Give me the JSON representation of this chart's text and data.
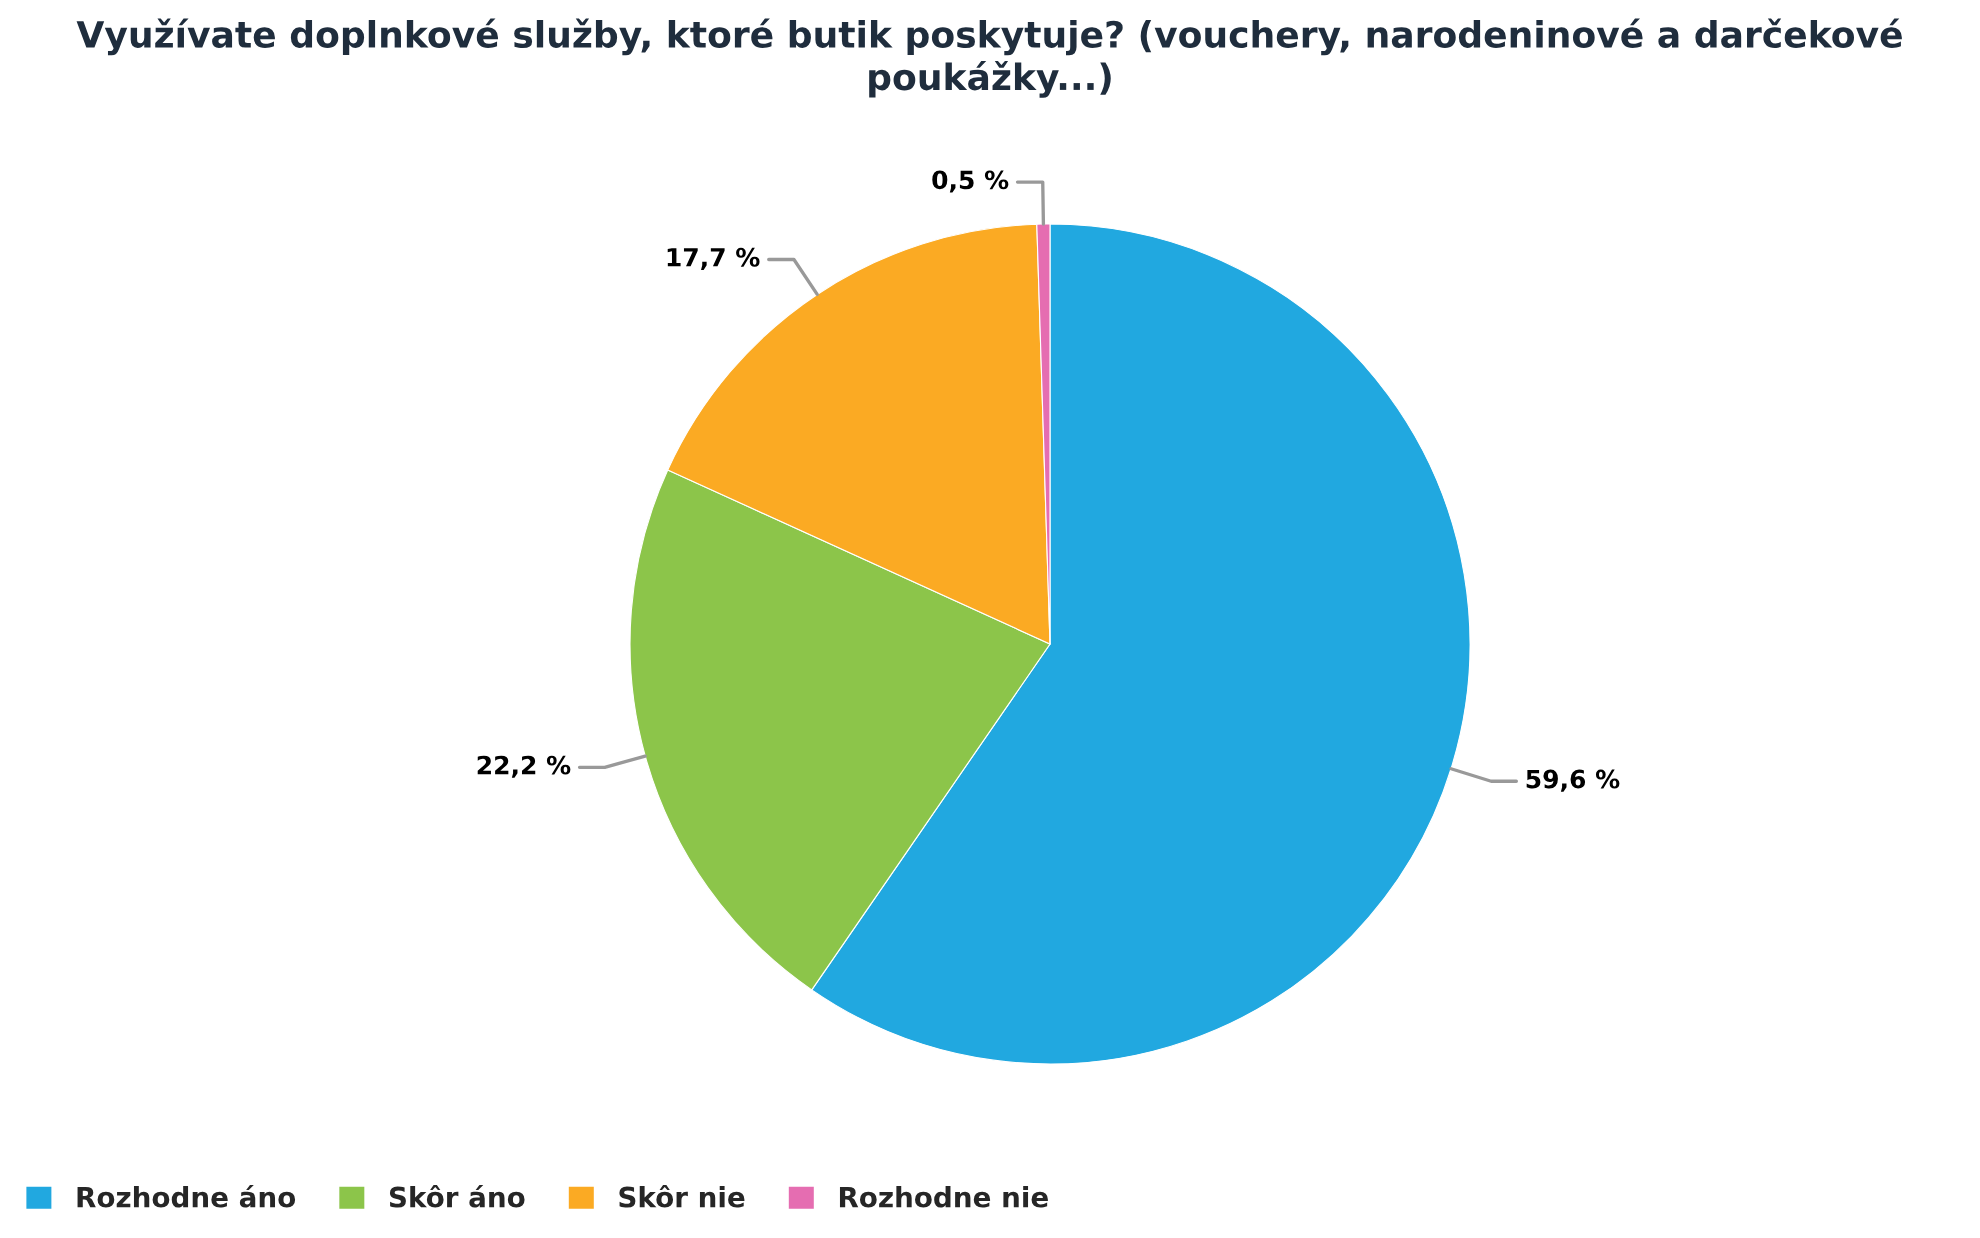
{
  "chart_data": {
    "type": "pie",
    "title": "Využívate doplnkové služby, ktoré butik poskytuje? (vouchery, narodeninové a darčekové poukážky...)",
    "categories": [
      "Rozhodne áno",
      "Skôr áno",
      "Skôr nie",
      "Rozhodne nie"
    ],
    "values": [
      59.6,
      22.2,
      17.7,
      0.5
    ],
    "colors": [
      "#21a8e0",
      "#8cc54a",
      "#fbaa23",
      "#e56db1"
    ],
    "value_labels": [
      "59,6 %",
      "22,2 %",
      "17,7 %",
      "0,5 %"
    ],
    "legend": "bottom left"
  }
}
